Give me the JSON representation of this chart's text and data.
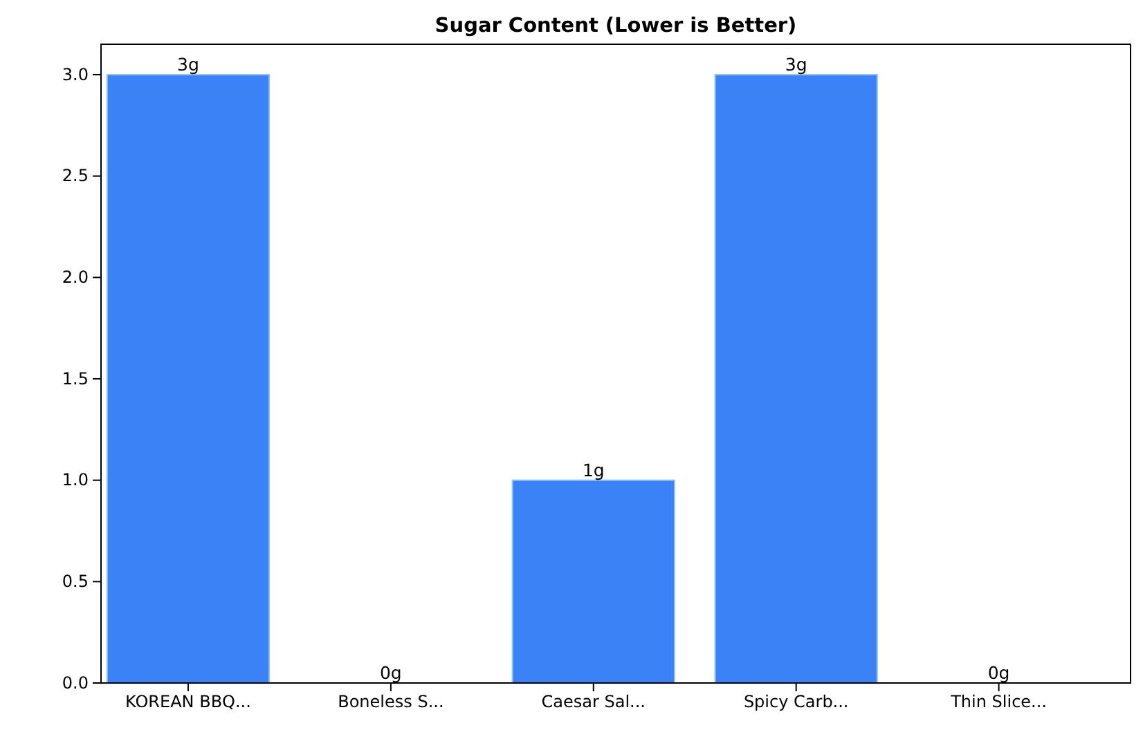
{
  "chart_data": {
    "type": "bar",
    "title": "Sugar Content (Lower is Better)",
    "categories": [
      "KOREAN BBQ...",
      "Boneless S...",
      "Caesar Sal...",
      "Spicy Carb...",
      "Thin Slice..."
    ],
    "values": [
      3,
      0,
      1,
      3,
      0
    ],
    "value_labels": [
      "3g",
      "0g",
      "1g",
      "3g",
      "0g"
    ],
    "color": "#3b82f6",
    "ylim": [
      0,
      3.15
    ],
    "yticks": [
      {
        "value": 0,
        "label": "0.0"
      },
      {
        "value": 0.5,
        "label": "0.5"
      },
      {
        "value": 1,
        "label": "1.0"
      },
      {
        "value": 1.5,
        "label": "1.5"
      },
      {
        "value": 2,
        "label": "2.0"
      },
      {
        "value": 2.5,
        "label": "2.5"
      },
      {
        "value": 3,
        "label": "3.0"
      }
    ],
    "grid": false
  }
}
